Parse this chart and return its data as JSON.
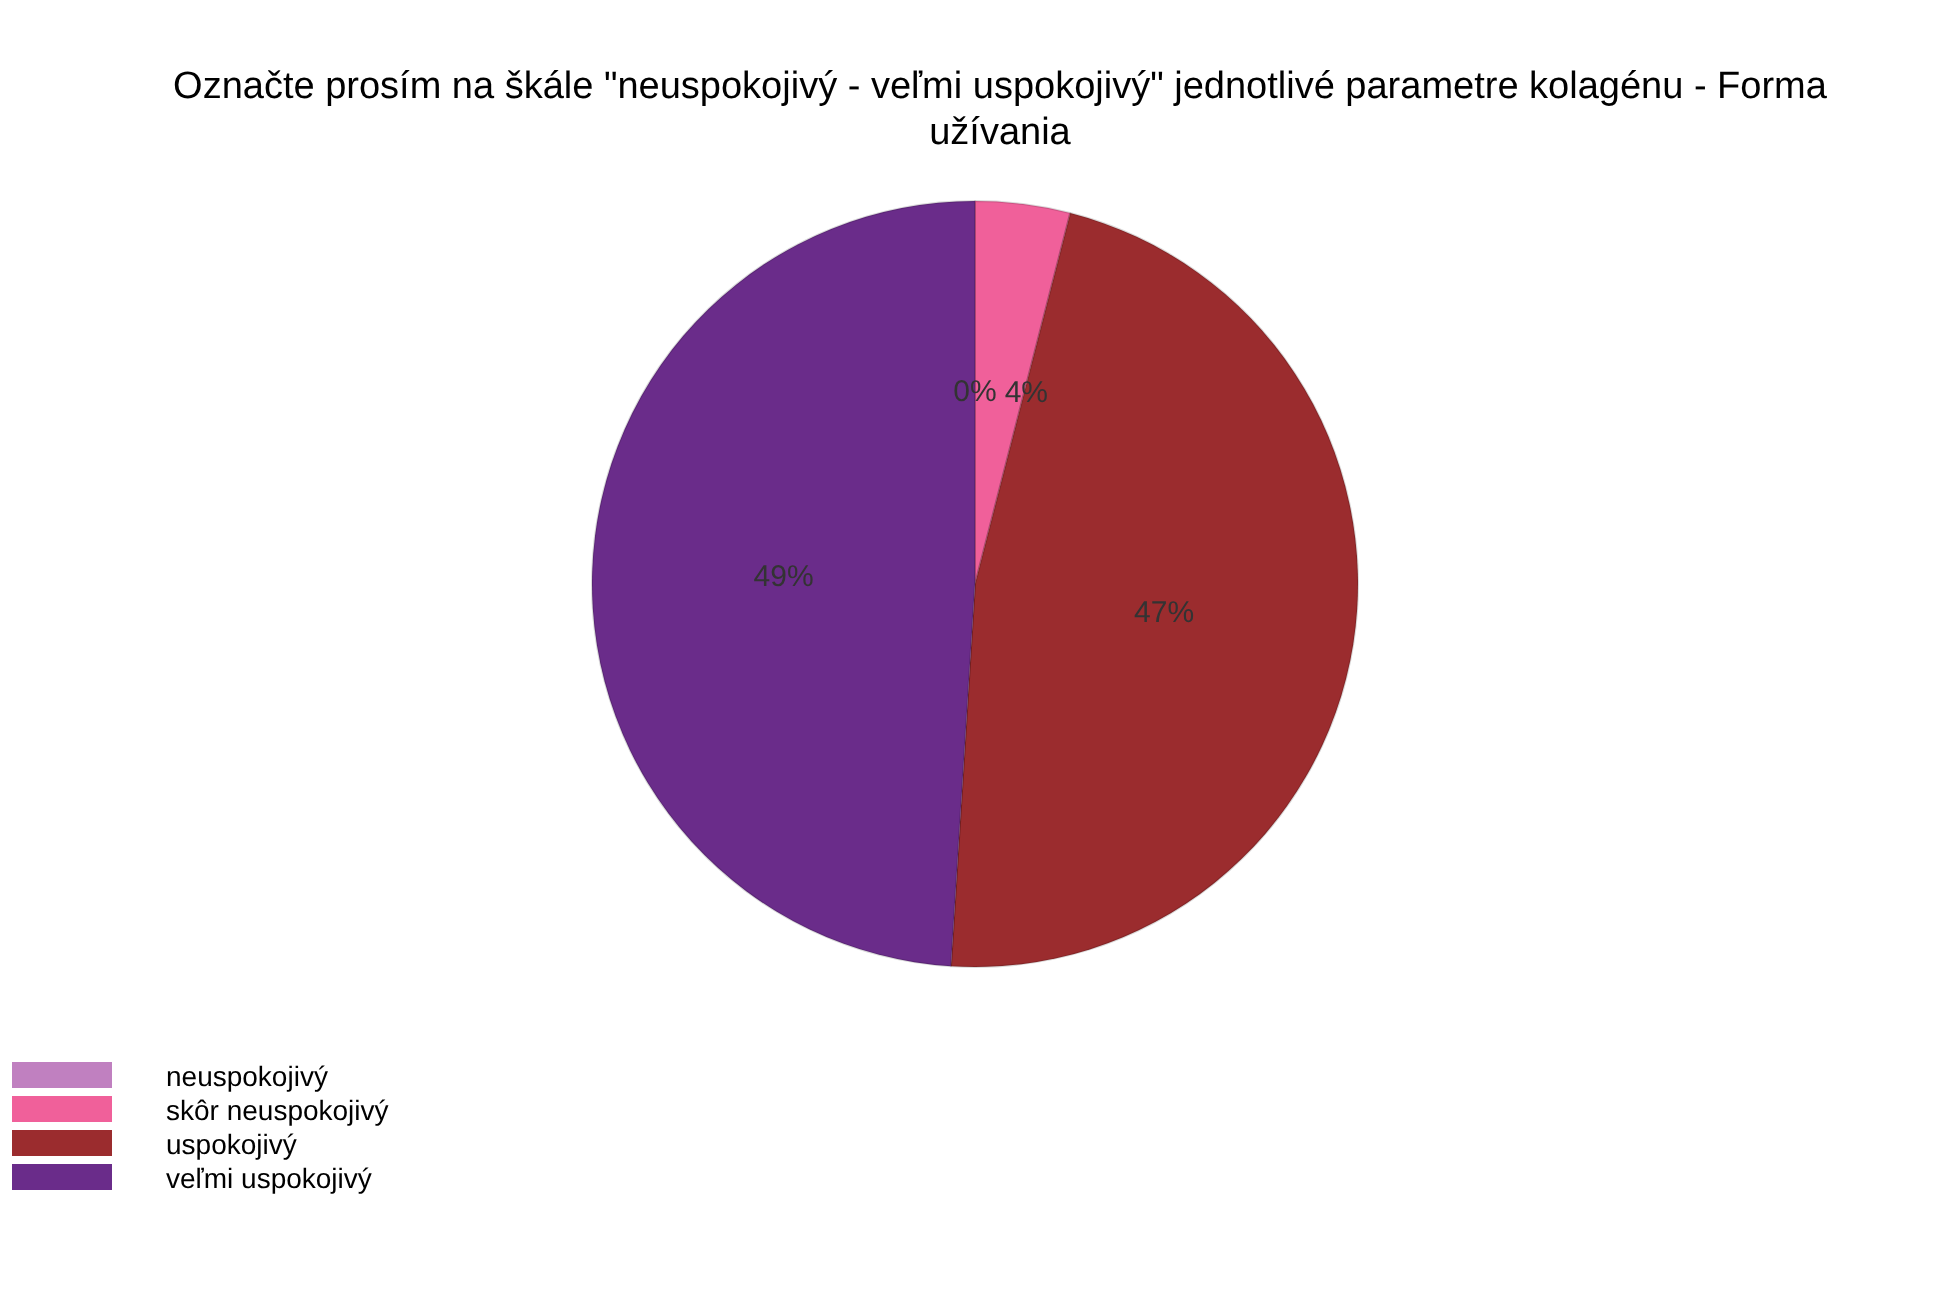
{
  "chart_data": {
    "type": "pie",
    "title": "Označte prosím na škále \"neuspokojivý - veľmi uspokojivý\" jednotlivé parametre kolagénu - Forma užívania",
    "categories": [
      "neuspokojivý",
      "skôr neuspokojivý",
      "uspokojivý",
      "veľmi uspokojivý"
    ],
    "values": [
      0,
      4,
      47,
      49
    ],
    "value_labels": [
      "0%",
      "4%",
      "47%",
      "49%"
    ],
    "colors": [
      "#c080c0",
      "#f0609a",
      "#9b2c2e",
      "#6a2c8a"
    ],
    "legend": "bottom left"
  }
}
